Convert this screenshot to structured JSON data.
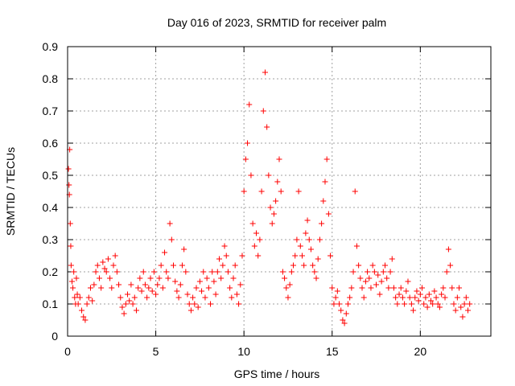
{
  "chart_data": {
    "type": "scatter",
    "title": "Day 016 of 2023, SRMTID for receiver palm",
    "xlabel": "GPS time / hours",
    "ylabel": "SRMTID / TECUs",
    "xlim": [
      0,
      24
    ],
    "ylim": [
      0,
      0.9
    ],
    "xticks": [
      0,
      5,
      10,
      15,
      20
    ],
    "yticks": [
      0,
      0.1,
      0.2,
      0.3,
      0.4,
      0.5,
      0.6,
      0.7,
      0.8,
      0.9
    ],
    "xtick_labels": [
      "0",
      "5",
      "10",
      "15",
      "20"
    ],
    "ytick_labels": [
      "0",
      "0.1",
      "0.2",
      "0.3",
      "0.4",
      "0.5",
      "0.6",
      "0.7",
      "0.8",
      "0.9"
    ],
    "grid": true,
    "marker": "+",
    "color": "#ff0000",
    "series": [
      {
        "name": "SRMTID",
        "points": [
          [
            0.05,
            0.52
          ],
          [
            0.08,
            0.47
          ],
          [
            0.1,
            0.44
          ],
          [
            0.12,
            0.58
          ],
          [
            0.15,
            0.35
          ],
          [
            0.18,
            0.28
          ],
          [
            0.2,
            0.22
          ],
          [
            0.25,
            0.17
          ],
          [
            0.3,
            0.15
          ],
          [
            0.35,
            0.2
          ],
          [
            0.4,
            0.12
          ],
          [
            0.45,
            0.1
          ],
          [
            0.5,
            0.18
          ],
          [
            0.55,
            0.13
          ],
          [
            0.6,
            0.1
          ],
          [
            0.7,
            0.12
          ],
          [
            0.8,
            0.08
          ],
          [
            0.9,
            0.06
          ],
          [
            1.0,
            0.05
          ],
          [
            1.1,
            0.1
          ],
          [
            1.2,
            0.12
          ],
          [
            1.3,
            0.15
          ],
          [
            1.4,
            0.11
          ],
          [
            1.5,
            0.16
          ],
          [
            1.6,
            0.2
          ],
          [
            1.7,
            0.22
          ],
          [
            1.8,
            0.18
          ],
          [
            1.9,
            0.15
          ],
          [
            2.0,
            0.23
          ],
          [
            2.1,
            0.21
          ],
          [
            2.2,
            0.2
          ],
          [
            2.3,
            0.24
          ],
          [
            2.4,
            0.18
          ],
          [
            2.5,
            0.15
          ],
          [
            2.6,
            0.22
          ],
          [
            2.7,
            0.25
          ],
          [
            2.8,
            0.2
          ],
          [
            2.9,
            0.16
          ],
          [
            3.0,
            0.12
          ],
          [
            3.1,
            0.09
          ],
          [
            3.2,
            0.07
          ],
          [
            3.3,
            0.1
          ],
          [
            3.4,
            0.13
          ],
          [
            3.5,
            0.11
          ],
          [
            3.6,
            0.16
          ],
          [
            3.7,
            0.1
          ],
          [
            3.8,
            0.12
          ],
          [
            3.9,
            0.08
          ],
          [
            4.0,
            0.15
          ],
          [
            4.1,
            0.18
          ],
          [
            4.2,
            0.14
          ],
          [
            4.3,
            0.2
          ],
          [
            4.4,
            0.16
          ],
          [
            4.5,
            0.12
          ],
          [
            4.6,
            0.15
          ],
          [
            4.7,
            0.18
          ],
          [
            4.8,
            0.14
          ],
          [
            4.9,
            0.2
          ],
          [
            5.0,
            0.13
          ],
          [
            5.1,
            0.16
          ],
          [
            5.2,
            0.18
          ],
          [
            5.3,
            0.22
          ],
          [
            5.4,
            0.15
          ],
          [
            5.5,
            0.26
          ],
          [
            5.6,
            0.2
          ],
          [
            5.7,
            0.18
          ],
          [
            5.8,
            0.35
          ],
          [
            5.9,
            0.3
          ],
          [
            6.0,
            0.22
          ],
          [
            6.1,
            0.17
          ],
          [
            6.2,
            0.14
          ],
          [
            6.3,
            0.12
          ],
          [
            6.4,
            0.16
          ],
          [
            6.5,
            0.22
          ],
          [
            6.6,
            0.27
          ],
          [
            6.7,
            0.2
          ],
          [
            6.8,
            0.13
          ],
          [
            6.9,
            0.1
          ],
          [
            7.0,
            0.08
          ],
          [
            7.1,
            0.12
          ],
          [
            7.2,
            0.1
          ],
          [
            7.3,
            0.15
          ],
          [
            7.4,
            0.09
          ],
          [
            7.5,
            0.17
          ],
          [
            7.6,
            0.14
          ],
          [
            7.7,
            0.2
          ],
          [
            7.8,
            0.12
          ],
          [
            7.9,
            0.18
          ],
          [
            8.0,
            0.15
          ],
          [
            8.1,
            0.1
          ],
          [
            8.2,
            0.2
          ],
          [
            8.3,
            0.17
          ],
          [
            8.4,
            0.13
          ],
          [
            8.5,
            0.2
          ],
          [
            8.6,
            0.24
          ],
          [
            8.7,
            0.18
          ],
          [
            8.8,
            0.22
          ],
          [
            8.9,
            0.28
          ],
          [
            9.0,
            0.25
          ],
          [
            9.1,
            0.2
          ],
          [
            9.2,
            0.15
          ],
          [
            9.3,
            0.12
          ],
          [
            9.4,
            0.18
          ],
          [
            9.5,
            0.22
          ],
          [
            9.6,
            0.13
          ],
          [
            9.7,
            0.1
          ],
          [
            9.8,
            0.16
          ],
          [
            9.9,
            0.25
          ],
          [
            10.0,
            0.45
          ],
          [
            10.1,
            0.55
          ],
          [
            10.2,
            0.6
          ],
          [
            10.3,
            0.72
          ],
          [
            10.4,
            0.5
          ],
          [
            10.5,
            0.35
          ],
          [
            10.6,
            0.28
          ],
          [
            10.7,
            0.32
          ],
          [
            10.8,
            0.25
          ],
          [
            10.9,
            0.3
          ],
          [
            11.0,
            0.45
          ],
          [
            11.1,
            0.7
          ],
          [
            11.2,
            0.82
          ],
          [
            11.3,
            0.65
          ],
          [
            11.4,
            0.5
          ],
          [
            11.5,
            0.4
          ],
          [
            11.6,
            0.35
          ],
          [
            11.7,
            0.38
          ],
          [
            11.8,
            0.42
          ],
          [
            11.9,
            0.48
          ],
          [
            12.0,
            0.55
          ],
          [
            12.1,
            0.45
          ],
          [
            12.2,
            0.2
          ],
          [
            12.3,
            0.18
          ],
          [
            12.4,
            0.15
          ],
          [
            12.5,
            0.12
          ],
          [
            12.6,
            0.16
          ],
          [
            12.7,
            0.2
          ],
          [
            12.8,
            0.22
          ],
          [
            12.9,
            0.25
          ],
          [
            13.0,
            0.3
          ],
          [
            13.1,
            0.45
          ],
          [
            13.2,
            0.28
          ],
          [
            13.3,
            0.25
          ],
          [
            13.4,
            0.22
          ],
          [
            13.5,
            0.32
          ],
          [
            13.6,
            0.36
          ],
          [
            13.7,
            0.3
          ],
          [
            13.8,
            0.27
          ],
          [
            13.9,
            0.22
          ],
          [
            14.0,
            0.2
          ],
          [
            14.1,
            0.18
          ],
          [
            14.2,
            0.24
          ],
          [
            14.3,
            0.3
          ],
          [
            14.4,
            0.35
          ],
          [
            14.5,
            0.42
          ],
          [
            14.6,
            0.48
          ],
          [
            14.7,
            0.55
          ],
          [
            14.8,
            0.38
          ],
          [
            14.9,
            0.25
          ],
          [
            15.0,
            0.15
          ],
          [
            15.1,
            0.1
          ],
          [
            15.2,
            0.12
          ],
          [
            15.3,
            0.14
          ],
          [
            15.4,
            0.1
          ],
          [
            15.5,
            0.08
          ],
          [
            15.6,
            0.05
          ],
          [
            15.7,
            0.04
          ],
          [
            15.8,
            0.07
          ],
          [
            15.9,
            0.1
          ],
          [
            16.0,
            0.12
          ],
          [
            16.1,
            0.15
          ],
          [
            16.2,
            0.2
          ],
          [
            16.3,
            0.45
          ],
          [
            16.4,
            0.28
          ],
          [
            16.5,
            0.22
          ],
          [
            16.6,
            0.18
          ],
          [
            16.7,
            0.15
          ],
          [
            16.8,
            0.12
          ],
          [
            16.9,
            0.17
          ],
          [
            17.0,
            0.2
          ],
          [
            17.1,
            0.18
          ],
          [
            17.2,
            0.15
          ],
          [
            17.3,
            0.22
          ],
          [
            17.4,
            0.2
          ],
          [
            17.5,
            0.16
          ],
          [
            17.6,
            0.19
          ],
          [
            17.7,
            0.13
          ],
          [
            17.8,
            0.17
          ],
          [
            17.9,
            0.2
          ],
          [
            18.0,
            0.22
          ],
          [
            18.1,
            0.18
          ],
          [
            18.2,
            0.15
          ],
          [
            18.3,
            0.2
          ],
          [
            18.4,
            0.24
          ],
          [
            18.5,
            0.15
          ],
          [
            18.6,
            0.12
          ],
          [
            18.7,
            0.1
          ],
          [
            18.8,
            0.13
          ],
          [
            18.9,
            0.15
          ],
          [
            19.0,
            0.12
          ],
          [
            19.1,
            0.1
          ],
          [
            19.2,
            0.14
          ],
          [
            19.3,
            0.17
          ],
          [
            19.4,
            0.12
          ],
          [
            19.5,
            0.1
          ],
          [
            19.6,
            0.08
          ],
          [
            19.7,
            0.12
          ],
          [
            19.8,
            0.14
          ],
          [
            19.9,
            0.11
          ],
          [
            20.0,
            0.13
          ],
          [
            20.1,
            0.15
          ],
          [
            20.2,
            0.1
          ],
          [
            20.3,
            0.12
          ],
          [
            20.4,
            0.09
          ],
          [
            20.5,
            0.13
          ],
          [
            20.6,
            0.11
          ],
          [
            20.7,
            0.1
          ],
          [
            20.8,
            0.14
          ],
          [
            20.9,
            0.12
          ],
          [
            21.0,
            0.1
          ],
          [
            21.1,
            0.09
          ],
          [
            21.2,
            0.13
          ],
          [
            21.3,
            0.15
          ],
          [
            21.4,
            0.12
          ],
          [
            21.5,
            0.2
          ],
          [
            21.6,
            0.27
          ],
          [
            21.7,
            0.22
          ],
          [
            21.8,
            0.15
          ],
          [
            21.9,
            0.1
          ],
          [
            22.0,
            0.08
          ],
          [
            22.1,
            0.12
          ],
          [
            22.2,
            0.15
          ],
          [
            22.3,
            0.09
          ],
          [
            22.4,
            0.06
          ],
          [
            22.5,
            0.1
          ],
          [
            22.6,
            0.12
          ],
          [
            22.7,
            0.08
          ],
          [
            22.8,
            0.1
          ]
        ]
      }
    ]
  }
}
